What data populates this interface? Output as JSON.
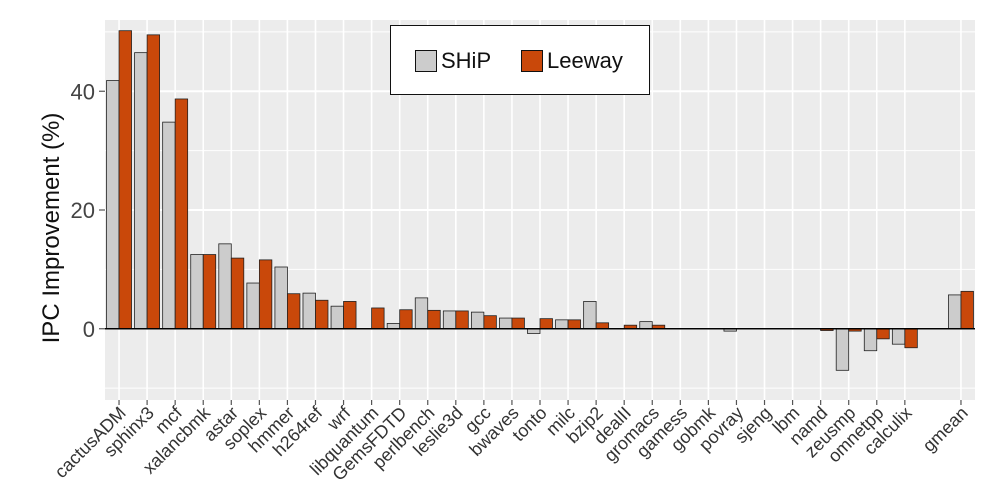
{
  "chart_data": {
    "type": "bar",
    "ylabel": "IPC Improvement (%)",
    "xlabel": "",
    "ylim": [
      -12,
      52
    ],
    "yticks": [
      0,
      20,
      40
    ],
    "grid": true,
    "legend_position": "top-center",
    "categories": [
      "cactusADM",
      "sphinx3",
      "mcf",
      "xalancbmk",
      "astar",
      "soplex",
      "hmmer",
      "h264ref",
      "wrf",
      "libquantum",
      "GemsFDTD",
      "perlbench",
      "leslie3d",
      "gcc",
      "bwaves",
      "tonto",
      "milc",
      "bzip2",
      "dealII",
      "gromacs",
      "gamess",
      "gobmk",
      "povray",
      "sjeng",
      "lbm",
      "namd",
      "zeusmp",
      "omnetpp",
      "calculix",
      "gmean"
    ],
    "series": [
      {
        "name": "SHiP",
        "color": "#cccccc",
        "values": [
          41.8,
          46.5,
          34.8,
          12.5,
          14.3,
          7.7,
          10.4,
          6.0,
          3.8,
          0.0,
          0.9,
          5.2,
          3.0,
          2.8,
          1.8,
          -0.8,
          1.5,
          4.6,
          0.0,
          1.2,
          0.0,
          0.0,
          -0.4,
          0.0,
          0.0,
          0.0,
          -7.0,
          -3.7,
          -2.6,
          5.7
        ]
      },
      {
        "name": "Leeway",
        "color": "#c9480a",
        "values": [
          50.2,
          49.5,
          38.7,
          12.5,
          11.9,
          11.6,
          5.9,
          4.8,
          4.6,
          3.5,
          3.2,
          3.1,
          3.0,
          2.2,
          1.8,
          1.7,
          1.5,
          1.0,
          0.6,
          0.6,
          0.0,
          0.0,
          0.0,
          0.0,
          0.0,
          -0.3,
          -0.4,
          -1.7,
          -3.2,
          6.3
        ]
      }
    ]
  }
}
